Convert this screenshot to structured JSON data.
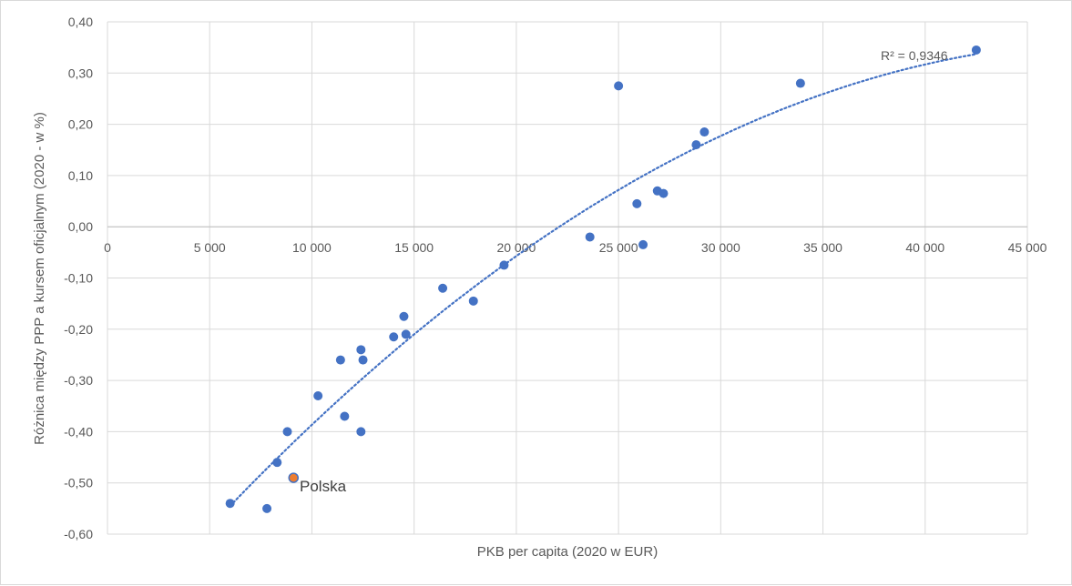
{
  "chart_data": {
    "type": "scatter",
    "title": "",
    "xlabel": "PKB per capita (2020 w EUR)",
    "ylabel": "Różnica między PPP a kursem oficjalnym (2020 - w %)",
    "xlim": [
      0,
      45000
    ],
    "ylim": [
      -0.6,
      0.4
    ],
    "x_ticks": [
      "0",
      "5 000",
      "10 000",
      "15 000",
      "20 000",
      "25 000",
      "30 000",
      "35 000",
      "40 000",
      "45 000"
    ],
    "y_ticks": [
      "0,40",
      "0,30",
      "0,20",
      "0,10",
      "0,00",
      "-0,10",
      "-0,20",
      "-0,30",
      "-0,40",
      "-0,50",
      "-0,60"
    ],
    "grid": true,
    "legend": "none",
    "colors": {
      "points": "#4472c4",
      "highlight": "#ed7d31",
      "trendline": "#4472c4",
      "grid": "#d9d9d9"
    },
    "series": [
      {
        "points": [
          [
            6000,
            -0.54
          ],
          [
            7800,
            -0.55
          ],
          [
            8300,
            -0.46
          ],
          [
            8800,
            -0.4
          ],
          [
            10300,
            -0.33
          ],
          [
            11400,
            -0.26
          ],
          [
            11600,
            -0.37
          ],
          [
            12400,
            -0.24
          ],
          [
            12500,
            -0.26
          ],
          [
            12400,
            -0.4
          ],
          [
            14000,
            -0.215
          ],
          [
            14500,
            -0.175
          ],
          [
            14600,
            -0.21
          ],
          [
            16400,
            -0.12
          ],
          [
            17900,
            -0.145
          ],
          [
            19400,
            -0.075
          ],
          [
            23600,
            -0.02
          ],
          [
            25000,
            0.275
          ],
          [
            25900,
            0.045
          ],
          [
            26200,
            -0.035
          ],
          [
            26900,
            0.07
          ],
          [
            27200,
            0.065
          ],
          [
            28800,
            0.16
          ],
          [
            29200,
            0.185
          ],
          [
            33900,
            0.28
          ],
          [
            42500,
            0.345
          ]
        ]
      }
    ],
    "highlighted_point": {
      "label": "Polska",
      "x": 9100,
      "y": -0.49
    },
    "trendline": {
      "type": "polynomial",
      "x_range": [
        6000,
        42500
      ],
      "r2_label": "R² = 0,9346"
    }
  }
}
